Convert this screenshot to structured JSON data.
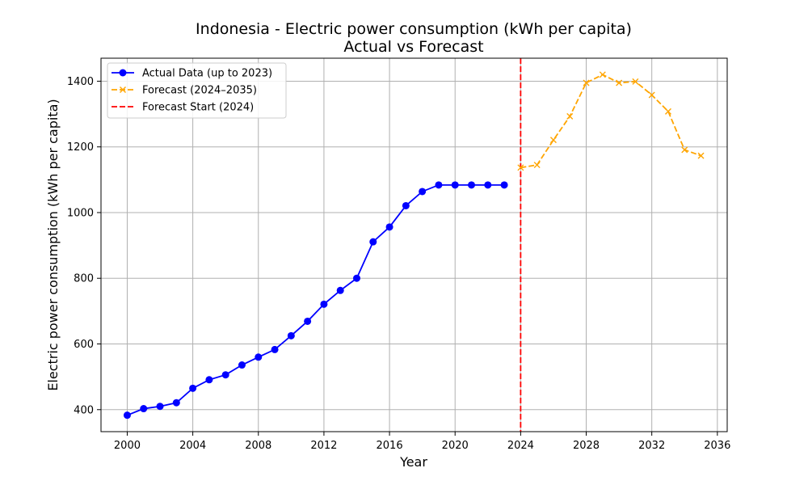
{
  "chart_data": {
    "type": "line",
    "title": "Indonesia - Electric power consumption (kWh per capita)",
    "subtitle": "Actual vs Forecast",
    "xlabel": "Year",
    "ylabel": "Electric power consumption (kWh per capita)",
    "xlim": [
      1998.4,
      2036.6
    ],
    "ylim": [
      333,
      1470
    ],
    "xticks": [
      2000,
      2004,
      2008,
      2012,
      2016,
      2020,
      2024,
      2028,
      2032,
      2036
    ],
    "yticks": [
      400,
      600,
      800,
      1000,
      1200,
      1400
    ],
    "grid": true,
    "legend_position": "top-left",
    "series": [
      {
        "name": "Actual Data (up to 2023)",
        "color": "#0000ff",
        "line_style": "solid",
        "marker": "circle",
        "x": [
          2000,
          2001,
          2002,
          2003,
          2004,
          2005,
          2006,
          2007,
          2008,
          2009,
          2010,
          2011,
          2012,
          2013,
          2014,
          2015,
          2016,
          2017,
          2018,
          2019,
          2020,
          2021,
          2022,
          2023
        ],
        "values": [
          383,
          403,
          410,
          421,
          465,
          491,
          506,
          536,
          560,
          583,
          625,
          669,
          721,
          763,
          800,
          911,
          956,
          1021,
          1064,
          1084,
          1084,
          1084,
          1084,
          1084
        ]
      },
      {
        "name": "Forecast (2024–2035)",
        "color": "#ffa500",
        "line_style": "dashed",
        "marker": "x",
        "x": [
          2024,
          2025,
          2026,
          2027,
          2028,
          2029,
          2030,
          2031,
          2032,
          2033,
          2034,
          2035
        ],
        "values": [
          1137,
          1145,
          1221,
          1293,
          1395,
          1420,
          1395,
          1399,
          1358,
          1308,
          1191,
          1173
        ]
      }
    ],
    "reference_lines": [
      {
        "name": "Forecast Start (2024)",
        "color": "#ff0000",
        "line_style": "dashed",
        "orientation": "vertical",
        "x": 2024
      }
    ]
  }
}
